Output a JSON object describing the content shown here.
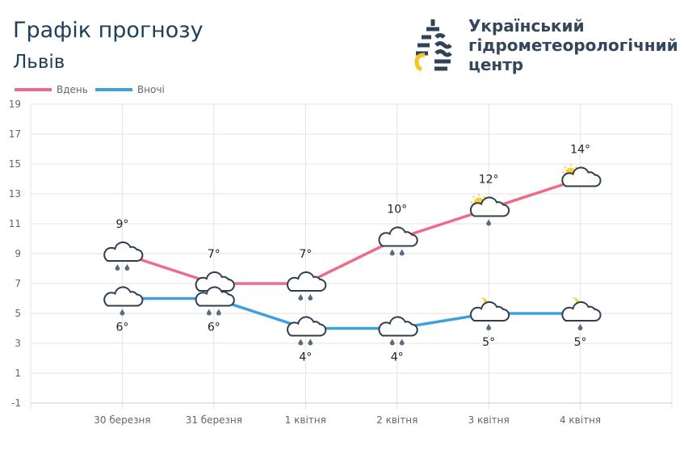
{
  "header": {
    "title": "Графік прогнозу",
    "city": "Львів"
  },
  "org": {
    "line1": "Український",
    "line2": "гідрометеорологічний",
    "line3": "центр"
  },
  "chart_data": {
    "type": "line",
    "categories": [
      "30 березня",
      "31 березня",
      "1 квітня",
      "2 квітня",
      "3 квітня",
      "4 квітня"
    ],
    "ylim": [
      -1,
      19
    ],
    "yticks": [
      19,
      17,
      15,
      13,
      11,
      9,
      7,
      5,
      3,
      1,
      -1
    ],
    "grid": true,
    "legend_placement": "top-left",
    "series": [
      {
        "name": "Вдень",
        "color": "#ee6b8a",
        "values": [
          9,
          7,
          7,
          10,
          12,
          14
        ],
        "labels": [
          "9°",
          "7°",
          "7°",
          "10°",
          "12°",
          "14°"
        ],
        "icons": [
          "cloud-rain-2",
          "cloud-rain-2",
          "cloud-rain-2",
          "cloud-rain-2",
          "sun-cloud-rain-1",
          "sun-cloud"
        ]
      },
      {
        "name": "Вночі",
        "color": "#3fa0dc",
        "values": [
          6,
          6,
          4,
          4,
          5,
          5
        ],
        "labels": [
          "6°",
          "6°",
          "4°",
          "4°",
          "5°",
          "5°"
        ],
        "icons": [
          "cloud-rain-1",
          "cloud-rain-2",
          "cloud-rain-2",
          "cloud-rain-2",
          "moon-cloud-rain-1",
          "moon-cloud-rain-1"
        ]
      }
    ]
  }
}
